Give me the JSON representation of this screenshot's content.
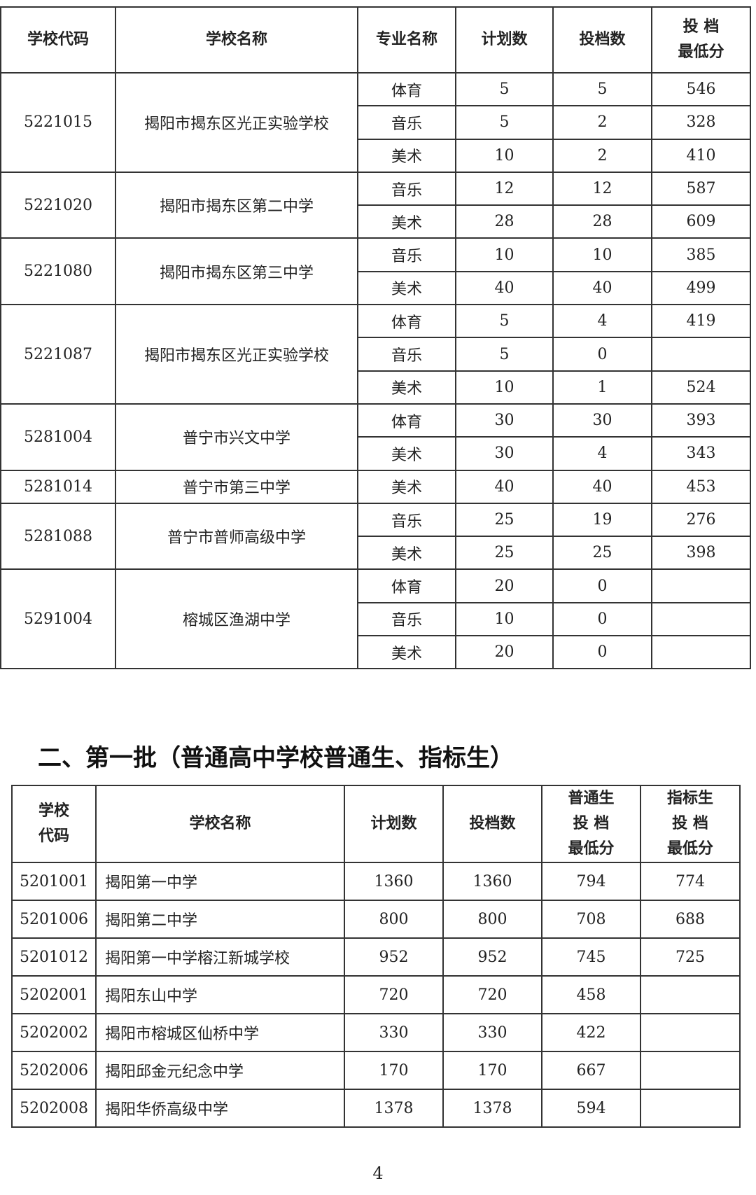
{
  "table1": {
    "headers": [
      "学校代码",
      "学校名称",
      "专业名称",
      "计划数",
      "投档数",
      "投 档\n最低分"
    ],
    "groups": [
      {
        "code": "5221015",
        "name": "揭阳市揭东区光正实验学校",
        "rows": [
          {
            "major": "体育",
            "plan": "5",
            "admitted": "5",
            "min": "546"
          },
          {
            "major": "音乐",
            "plan": "5",
            "admitted": "2",
            "min": "328"
          },
          {
            "major": "美术",
            "plan": "10",
            "admitted": "2",
            "min": "410"
          }
        ]
      },
      {
        "code": "5221020",
        "name": "揭阳市揭东区第二中学",
        "rows": [
          {
            "major": "音乐",
            "plan": "12",
            "admitted": "12",
            "min": "587"
          },
          {
            "major": "美术",
            "plan": "28",
            "admitted": "28",
            "min": "609"
          }
        ]
      },
      {
        "code": "5221080",
        "name": "揭阳市揭东区第三中学",
        "rows": [
          {
            "major": "音乐",
            "plan": "10",
            "admitted": "10",
            "min": "385"
          },
          {
            "major": "美术",
            "plan": "40",
            "admitted": "40",
            "min": "499"
          }
        ]
      },
      {
        "code": "5221087",
        "name": "揭阳市揭东区光正实验学校",
        "rows": [
          {
            "major": "体育",
            "plan": "5",
            "admitted": "4",
            "min": "419"
          },
          {
            "major": "音乐",
            "plan": "5",
            "admitted": "0",
            "min": ""
          },
          {
            "major": "美术",
            "plan": "10",
            "admitted": "1",
            "min": "524"
          }
        ]
      },
      {
        "code": "5281004",
        "name": "普宁市兴文中学",
        "rows": [
          {
            "major": "体育",
            "plan": "30",
            "admitted": "30",
            "min": "393"
          },
          {
            "major": "美术",
            "plan": "30",
            "admitted": "4",
            "min": "343"
          }
        ]
      },
      {
        "code": "5281014",
        "name": "普宁市第三中学",
        "rows": [
          {
            "major": "美术",
            "plan": "40",
            "admitted": "40",
            "min": "453"
          }
        ]
      },
      {
        "code": "5281088",
        "name": "普宁市普师高级中学",
        "rows": [
          {
            "major": "音乐",
            "plan": "25",
            "admitted": "19",
            "min": "276"
          },
          {
            "major": "美术",
            "plan": "25",
            "admitted": "25",
            "min": "398"
          }
        ]
      },
      {
        "code": "5291004",
        "name": "榕城区渔湖中学",
        "rows": [
          {
            "major": "体育",
            "plan": "20",
            "admitted": "0",
            "min": ""
          },
          {
            "major": "音乐",
            "plan": "10",
            "admitted": "0",
            "min": ""
          },
          {
            "major": "美术",
            "plan": "20",
            "admitted": "0",
            "min": ""
          }
        ]
      }
    ]
  },
  "heading": "二、第一批（普通高中学校普通生、指标生）",
  "table2": {
    "headers": [
      "学校\n代码",
      "学校名称",
      "计划数",
      "投档数",
      "普通生\n投 档\n最低分",
      "指标生\n投 档\n最低分"
    ],
    "rows": [
      [
        "5201001",
        "揭阳第一中学",
        "1360",
        "1360",
        "794",
        "774"
      ],
      [
        "5201006",
        "揭阳第二中学",
        "800",
        "800",
        "708",
        "688"
      ],
      [
        "5201012",
        "揭阳第一中学榕江新城学校",
        "952",
        "952",
        "745",
        "725"
      ],
      [
        "5202001",
        "揭阳东山中学",
        "720",
        "720",
        "458",
        ""
      ],
      [
        "5202002",
        "揭阳市榕城区仙桥中学",
        "330",
        "330",
        "422",
        ""
      ],
      [
        "5202006",
        "揭阳邱金元纪念中学",
        "170",
        "170",
        "667",
        ""
      ],
      [
        "5202008",
        "揭阳华侨高级中学",
        "1378",
        "1378",
        "594",
        ""
      ]
    ]
  },
  "page_number": "4"
}
